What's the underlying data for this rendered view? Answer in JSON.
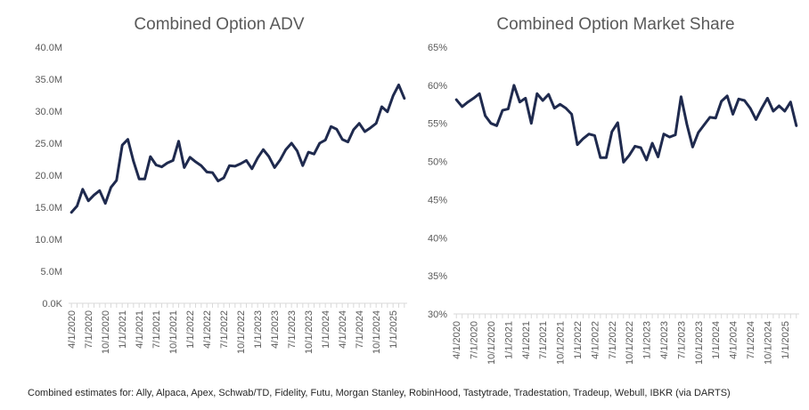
{
  "chart_data": [
    {
      "type": "line",
      "title": "Combined Option ADV",
      "xlabel": "",
      "ylabel": "",
      "ylim": [
        0,
        40
      ],
      "y_unit": "M",
      "y_ticks": [
        "0.0K",
        "5.0M",
        "10.0M",
        "15.0M",
        "20.0M",
        "25.0M",
        "30.0M",
        "35.0M",
        "40.0M"
      ],
      "x_tick_labels": [
        "4/1/2020",
        "7/1/2020",
        "10/1/2020",
        "1/1/2021",
        "4/1/2021",
        "7/1/2021",
        "10/1/2021",
        "1/1/2022",
        "4/1/2022",
        "7/1/2022",
        "10/1/2022",
        "1/1/2023",
        "4/1/2023",
        "7/1/2023",
        "10/1/2023",
        "1/1/2024",
        "4/1/2024",
        "7/1/2024",
        "10/1/2024",
        "1/1/2025"
      ],
      "line_color": "#1f2a4e",
      "grid": false,
      "series": [
        {
          "x": [
            "4/1/2020",
            "5/1/2020",
            "6/1/2020",
            "7/1/2020",
            "8/1/2020",
            "9/1/2020",
            "10/1/2020",
            "11/1/2020",
            "12/1/2020",
            "1/1/2021",
            "2/1/2021",
            "3/1/2021",
            "4/1/2021",
            "5/1/2021",
            "6/1/2021",
            "7/1/2021",
            "8/1/2021",
            "9/1/2021",
            "10/1/2021",
            "11/1/2021",
            "12/1/2021",
            "1/1/2022",
            "2/1/2022",
            "3/1/2022",
            "4/1/2022",
            "5/1/2022",
            "6/1/2022",
            "7/1/2022",
            "8/1/2022",
            "9/1/2022",
            "10/1/2022",
            "11/1/2022",
            "12/1/2022",
            "1/1/2023",
            "2/1/2023",
            "3/1/2023",
            "4/1/2023",
            "5/1/2023",
            "6/1/2023",
            "7/1/2023",
            "8/1/2023",
            "9/1/2023",
            "10/1/2023",
            "11/1/2023",
            "12/1/2023",
            "1/1/2024",
            "2/1/2024",
            "3/1/2024",
            "4/1/2024",
            "5/1/2024",
            "6/1/2024",
            "7/1/2024",
            "8/1/2024",
            "9/1/2024",
            "10/1/2024",
            "11/1/2024",
            "12/1/2024",
            "1/1/2025",
            "2/1/2025",
            "3/1/2025"
          ],
          "values": [
            14.2,
            15.2,
            17.8,
            16.0,
            16.9,
            17.6,
            15.6,
            18.1,
            19.2,
            24.7,
            25.6,
            22.2,
            19.4,
            19.4,
            22.9,
            21.6,
            21.3,
            21.9,
            22.3,
            25.3,
            21.2,
            22.8,
            22.1,
            21.5,
            20.5,
            20.4,
            19.1,
            19.6,
            21.5,
            21.4,
            21.8,
            22.3,
            21.0,
            22.7,
            24.0,
            22.9,
            21.2,
            22.4,
            24.0,
            25.0,
            23.8,
            21.5,
            23.6,
            23.3,
            25.0,
            25.5,
            27.6,
            27.2,
            25.6,
            25.2,
            27.1,
            28.1,
            26.8,
            27.4,
            28.1,
            30.7,
            29.9,
            32.4,
            34.1,
            32.0
          ]
        }
      ]
    },
    {
      "type": "line",
      "title": "Combined Option Market Share",
      "xlabel": "",
      "ylabel": "",
      "ylim": [
        30,
        65
      ],
      "y_unit": "%",
      "y_ticks": [
        "30%",
        "35%",
        "40%",
        "45%",
        "50%",
        "55%",
        "60%",
        "65%"
      ],
      "x_tick_labels": [
        "4/1/2020",
        "7/1/2020",
        "10/1/2020",
        "1/1/2021",
        "4/1/2021",
        "7/1/2021",
        "10/1/2021",
        "1/1/2022",
        "4/1/2022",
        "7/1/2022",
        "10/1/2022",
        "1/1/2023",
        "4/1/2023",
        "7/1/2023",
        "10/1/2023",
        "1/1/2024",
        "4/1/2024",
        "7/1/2024",
        "10/1/2024",
        "1/1/2025"
      ],
      "line_color": "#1f2a4e",
      "grid": false,
      "series": [
        {
          "x": [
            "4/1/2020",
            "5/1/2020",
            "6/1/2020",
            "7/1/2020",
            "8/1/2020",
            "9/1/2020",
            "10/1/2020",
            "11/1/2020",
            "12/1/2020",
            "1/1/2021",
            "2/1/2021",
            "3/1/2021",
            "4/1/2021",
            "5/1/2021",
            "6/1/2021",
            "7/1/2021",
            "8/1/2021",
            "9/1/2021",
            "10/1/2021",
            "11/1/2021",
            "12/1/2021",
            "1/1/2022",
            "2/1/2022",
            "3/1/2022",
            "4/1/2022",
            "5/1/2022",
            "6/1/2022",
            "7/1/2022",
            "8/1/2022",
            "9/1/2022",
            "10/1/2022",
            "11/1/2022",
            "12/1/2022",
            "1/1/2023",
            "2/1/2023",
            "3/1/2023",
            "4/1/2023",
            "5/1/2023",
            "6/1/2023",
            "7/1/2023",
            "8/1/2023",
            "9/1/2023",
            "10/1/2023",
            "11/1/2023",
            "12/1/2023",
            "1/1/2024",
            "2/1/2024",
            "3/1/2024",
            "4/1/2024",
            "5/1/2024",
            "6/1/2024",
            "7/1/2024",
            "8/1/2024",
            "9/1/2024",
            "10/1/2024",
            "11/1/2024",
            "12/1/2024",
            "1/1/2025",
            "2/1/2025",
            "3/1/2025"
          ],
          "values": [
            58.1,
            57.2,
            57.8,
            58.3,
            58.9,
            56.0,
            55.0,
            54.7,
            56.7,
            56.9,
            60.0,
            57.8,
            58.3,
            55.0,
            58.9,
            58.0,
            58.8,
            57.0,
            57.5,
            57.0,
            56.2,
            52.2,
            53.0,
            53.6,
            53.4,
            50.5,
            50.5,
            53.9,
            55.1,
            49.9,
            50.8,
            52.0,
            51.8,
            50.2,
            52.4,
            50.6,
            53.6,
            53.2,
            53.5,
            58.5,
            54.9,
            51.9,
            53.8,
            54.8,
            55.8,
            55.7,
            57.9,
            58.6,
            56.2,
            58.2,
            58.0,
            57.0,
            55.5,
            57.0,
            58.3,
            56.6,
            57.3,
            56.6,
            57.8,
            54.7
          ]
        }
      ]
    }
  ],
  "footnote": "Combined estimates for: Ally, Alpaca, Apex, Schwab/TD, Fidelity, Futu, Morgan Stanley, RobinHood, Tastytrade, Tradestation, Tradeup, Webull, IBKR (via DARTS)"
}
